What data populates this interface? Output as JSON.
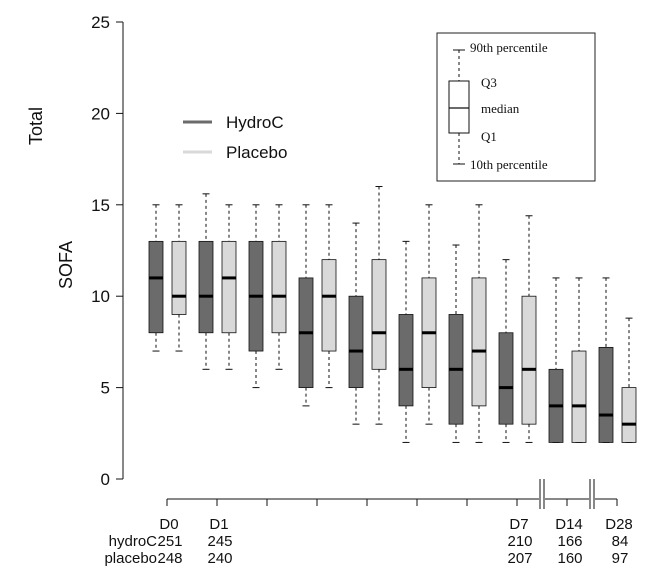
{
  "chart_data": {
    "type": "boxplot",
    "ylabel_top": "Total",
    "ylabel_bottom": "SOFA",
    "ylim": [
      0,
      25
    ],
    "yticks": [
      "0",
      "5",
      "10",
      "15",
      "20",
      "25"
    ],
    "legend": {
      "entries": [
        {
          "name": "HydroC",
          "color": "#6b6b6b"
        },
        {
          "name": "Placebo",
          "color": "#d9d9d9"
        }
      ],
      "key_labels": {
        "p90": "90th percentile",
        "q3": "Q3",
        "median": "median",
        "q1": "Q1",
        "p10": "10th percentile"
      }
    },
    "colors": {
      "hydroc": "#6b6b6b",
      "placebo": "#d9d9d9"
    },
    "day_slots": 9,
    "boxes": [
      {
        "slot": 0,
        "group": "hydroc",
        "p10": 7,
        "q1": 8,
        "median": 11,
        "q3": 13,
        "p90": 15
      },
      {
        "slot": 0,
        "group": "placebo",
        "p10": 7,
        "q1": 9,
        "median": 10,
        "q3": 13,
        "p90": 15
      },
      {
        "slot": 1,
        "group": "hydroc",
        "p10": 6,
        "q1": 8,
        "median": 10,
        "q3": 13,
        "p90": 15.6
      },
      {
        "slot": 1,
        "group": "placebo",
        "p10": 6,
        "q1": 8,
        "median": 11,
        "q3": 13,
        "p90": 15
      },
      {
        "slot": 2,
        "group": "hydroc",
        "p10": 5,
        "q1": 7,
        "median": 10,
        "q3": 13,
        "p90": 15
      },
      {
        "slot": 2,
        "group": "placebo",
        "p10": 6,
        "q1": 8,
        "median": 10,
        "q3": 13,
        "p90": 15
      },
      {
        "slot": 3,
        "group": "hydroc",
        "p10": 4,
        "q1": 5,
        "median": 8,
        "q3": 11,
        "p90": 15
      },
      {
        "slot": 3,
        "group": "placebo",
        "p10": 5,
        "q1": 7,
        "median": 10,
        "q3": 12,
        "p90": 15
      },
      {
        "slot": 4,
        "group": "hydroc",
        "p10": 3,
        "q1": 5,
        "median": 7,
        "q3": 10,
        "p90": 14
      },
      {
        "slot": 4,
        "group": "placebo",
        "p10": 3,
        "q1": 6,
        "median": 8,
        "q3": 12,
        "p90": 16
      },
      {
        "slot": 5,
        "group": "hydroc",
        "p10": 2,
        "q1": 4,
        "median": 6,
        "q3": 9,
        "p90": 13
      },
      {
        "slot": 5,
        "group": "placebo",
        "p10": 3,
        "q1": 5,
        "median": 8,
        "q3": 11,
        "p90": 15
      },
      {
        "slot": 6,
        "group": "hydroc",
        "p10": 2,
        "q1": 3,
        "median": 6,
        "q3": 9,
        "p90": 12.8
      },
      {
        "slot": 6,
        "group": "placebo",
        "p10": 2,
        "q1": 4,
        "median": 7,
        "q3": 11,
        "p90": 15
      },
      {
        "slot": 7,
        "group": "hydroc",
        "p10": 2,
        "q1": 3,
        "median": 5,
        "q3": 8,
        "p90": 12
      },
      {
        "slot": 7,
        "group": "placebo",
        "p10": 2,
        "q1": 3,
        "median": 6,
        "q3": 10,
        "p90": 14.4
      },
      {
        "slot": 8,
        "group": "hydroc",
        "p10": 2,
        "q1": 2,
        "median": 4,
        "q3": 6,
        "p90": 11
      },
      {
        "slot": 8,
        "group": "placebo",
        "p10": 2,
        "q1": 2,
        "median": 4,
        "q3": 7,
        "p90": 11
      },
      {
        "slot": 9,
        "group": "hydroc",
        "p10": 2,
        "q1": 2,
        "median": 3.5,
        "q3": 7.2,
        "p90": 11
      },
      {
        "slot": 9,
        "group": "placebo",
        "p10": 2,
        "q1": 2,
        "median": 3,
        "q3": 5,
        "p90": 8.8
      }
    ],
    "x_axis": {
      "day_labels": [
        {
          "slot": 0,
          "label": "D0"
        },
        {
          "slot": 1,
          "label": "D1"
        },
        {
          "slot": 7,
          "label": "D7"
        },
        {
          "slot": 8,
          "label": "D14"
        },
        {
          "slot": 9,
          "label": "D28"
        }
      ],
      "breaks": [
        7.5,
        8.5
      ]
    },
    "counts": {
      "rows": [
        {
          "label": "hydroC",
          "values": [
            {
              "slot": 0,
              "n": "251"
            },
            {
              "slot": 1,
              "n": "245"
            },
            {
              "slot": 7,
              "n": "210"
            },
            {
              "slot": 8,
              "n": "166"
            },
            {
              "slot": 9,
              "n": "84"
            }
          ]
        },
        {
          "label": "placebo",
          "values": [
            {
              "slot": 0,
              "n": "248"
            },
            {
              "slot": 1,
              "n": "240"
            },
            {
              "slot": 7,
              "n": "207"
            },
            {
              "slot": 8,
              "n": "160"
            },
            {
              "slot": 9,
              "n": "97"
            }
          ]
        }
      ]
    }
  }
}
